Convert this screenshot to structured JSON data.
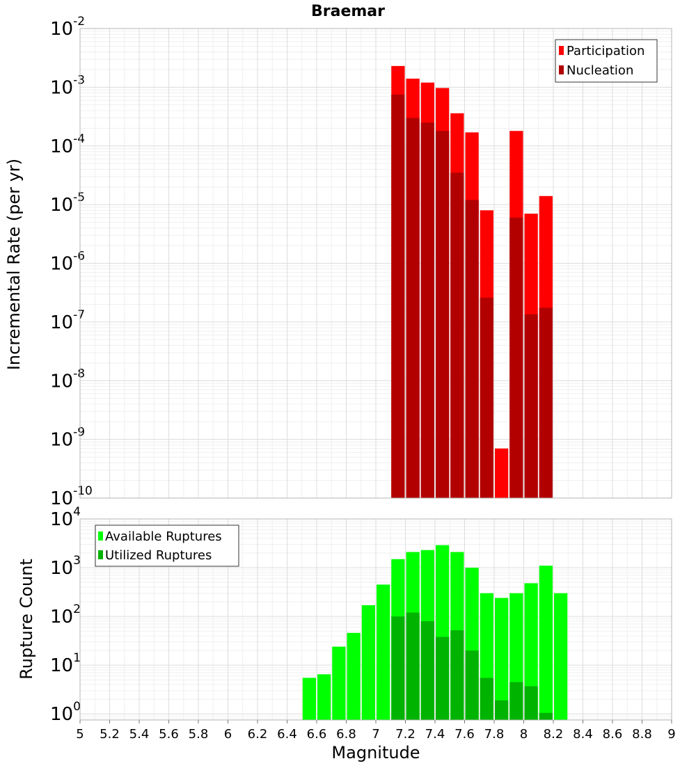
{
  "colors": {
    "participation": "#ff0000",
    "nucleation": "#b20000",
    "available": "#00ff00",
    "utilized": "#00b300",
    "grid_major": "#dcdcdc",
    "grid_minor": "#efefef",
    "frame": "#b4b4b4"
  },
  "chart_data": [
    {
      "type": "bar",
      "title": "Braemar",
      "xlabel": "",
      "ylabel": "Incremental Rate (per yr)",
      "yscale": "log",
      "xlim": [
        5,
        9
      ],
      "ylim": [
        1e-10,
        0.01
      ],
      "y_ticks": [
        {
          "base": "10",
          "exp": "-10",
          "value": 1e-10
        },
        {
          "base": "10",
          "exp": "-9",
          "value": 1e-09
        },
        {
          "base": "10",
          "exp": "-8",
          "value": 1e-08
        },
        {
          "base": "10",
          "exp": "-7",
          "value": 1e-07
        },
        {
          "base": "10",
          "exp": "-6",
          "value": 1e-06
        },
        {
          "base": "10",
          "exp": "-5",
          "value": 1e-05
        },
        {
          "base": "10",
          "exp": "-4",
          "value": 0.0001
        },
        {
          "base": "10",
          "exp": "-3",
          "value": 0.001
        },
        {
          "base": "10",
          "exp": "-2",
          "value": 0.01
        }
      ],
      "grid": true,
      "legend_position": "top-right",
      "bar_width": 0.1,
      "series": [
        {
          "name": "Participation",
          "color_key": "participation",
          "x": [
            7.15,
            7.25,
            7.35,
            7.45,
            7.55,
            7.65,
            7.75,
            7.85,
            7.95,
            8.05,
            8.15
          ],
          "values": [
            0.0023,
            0.0014,
            0.0012,
            0.00097,
            0.00036,
            0.00017,
            8e-06,
            7e-10,
            0.00018,
            7e-06,
            1.4e-05
          ]
        },
        {
          "name": "Nucleation",
          "color_key": "nucleation",
          "x": [
            7.15,
            7.25,
            7.35,
            7.45,
            7.55,
            7.65,
            7.75,
            7.95,
            8.05,
            8.15
          ],
          "values": [
            0.00075,
            0.0003,
            0.00025,
            0.00018,
            3.5e-05,
            1.2e-05,
            2.6e-07,
            6e-06,
            1.35e-07,
            1.75e-07
          ]
        }
      ]
    },
    {
      "type": "bar",
      "title": "",
      "xlabel": "Magnitude",
      "ylabel": "Rupture Count",
      "yscale": "log",
      "xlim": [
        5,
        9
      ],
      "ylim": [
        0.75,
        10000
      ],
      "x_ticks": [
        "5",
        "5.2",
        "5.4",
        "5.6",
        "5.8",
        "6",
        "6.2",
        "6.4",
        "6.6",
        "6.8",
        "7",
        "7.2",
        "7.4",
        "7.6",
        "7.8",
        "8",
        "8.2",
        "8.4",
        "8.6",
        "8.8",
        "9"
      ],
      "y_ticks": [
        {
          "base": "10",
          "exp": "0",
          "value": 1
        },
        {
          "base": "10",
          "exp": "1",
          "value": 10
        },
        {
          "base": "10",
          "exp": "2",
          "value": 100
        },
        {
          "base": "10",
          "exp": "3",
          "value": 1000
        },
        {
          "base": "10",
          "exp": "4",
          "value": 10000
        }
      ],
      "grid": true,
      "legend_position": "top-left",
      "bar_width": 0.1,
      "series": [
        {
          "name": "Available Ruptures",
          "color_key": "available",
          "x": [
            6.55,
            6.65,
            6.75,
            6.85,
            6.95,
            7.05,
            7.15,
            7.25,
            7.35,
            7.45,
            7.55,
            7.65,
            7.75,
            7.85,
            7.95,
            8.05,
            8.15,
            8.25
          ],
          "values": [
            5.5,
            6.5,
            24,
            46,
            170,
            450,
            1500,
            2100,
            2300,
            2900,
            2100,
            1000,
            300,
            240,
            300,
            480,
            1100,
            300
          ]
        },
        {
          "name": "Utilized Ruptures",
          "color_key": "utilized",
          "x": [
            7.15,
            7.25,
            7.35,
            7.45,
            7.55,
            7.65,
            7.75,
            7.85,
            7.95,
            8.05,
            8.15
          ],
          "values": [
            100,
            120,
            80,
            38,
            52,
            20,
            5.5,
            1.9,
            4.5,
            3.7,
            1.05
          ]
        }
      ]
    }
  ]
}
